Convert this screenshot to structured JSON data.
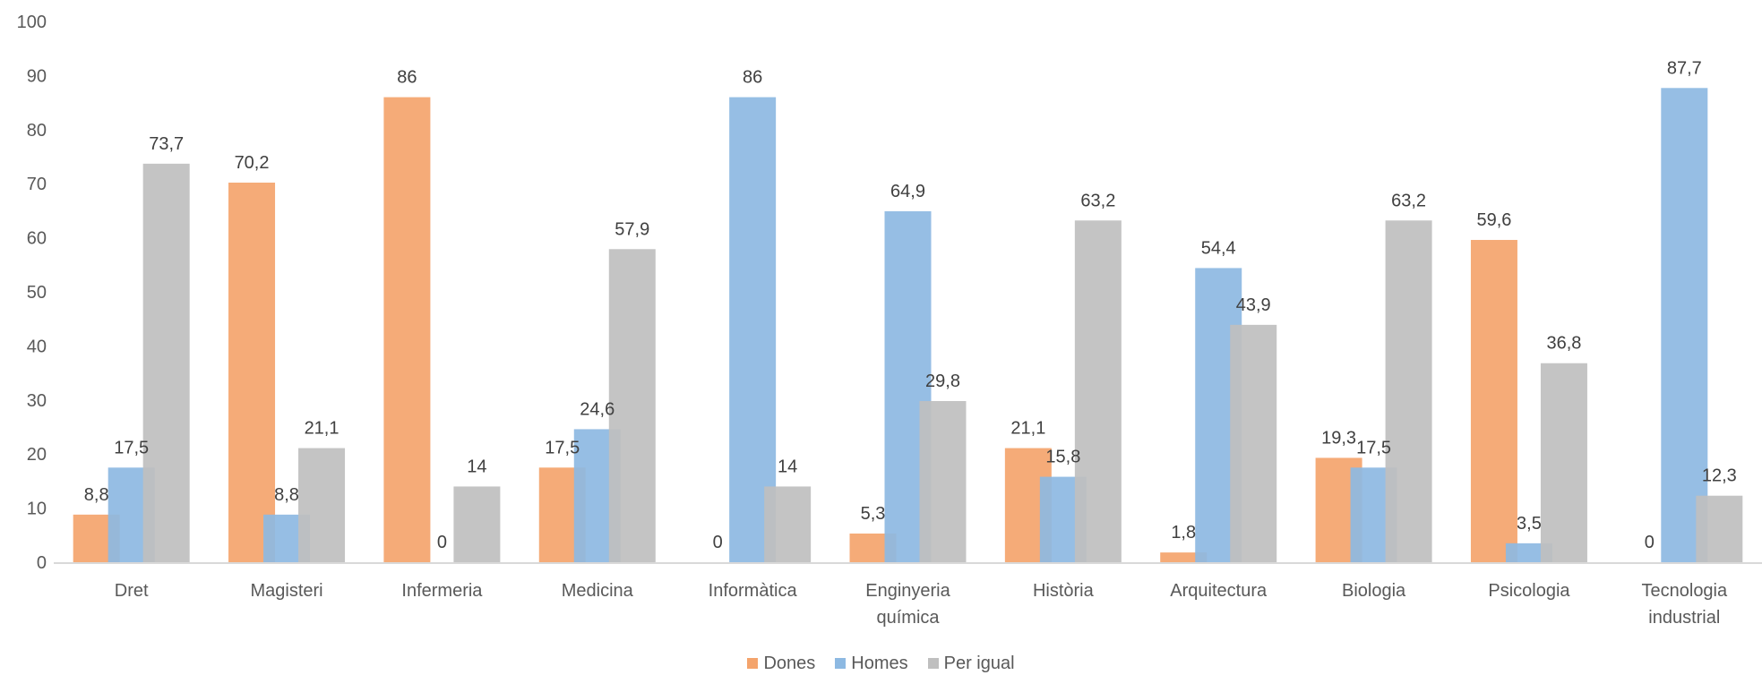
{
  "chart_data": {
    "type": "bar",
    "categories": [
      "Dret",
      "Magisteri",
      "Infermeria",
      "Medicina",
      "Informàtica",
      "Enginyeria química",
      "Història",
      "Arquitectura",
      "Biologia",
      "Psicologia",
      "Tecnologia industrial"
    ],
    "category_lines": [
      [
        "Dret"
      ],
      [
        "Magisteri"
      ],
      [
        "Infermeria"
      ],
      [
        "Medicina"
      ],
      [
        "Informàtica"
      ],
      [
        "Enginyeria",
        "química"
      ],
      [
        "Història"
      ],
      [
        "Arquitectura"
      ],
      [
        "Biologia"
      ],
      [
        "Psicologia"
      ],
      [
        "Tecnologia",
        "industrial"
      ]
    ],
    "series": [
      {
        "name": "Dones",
        "color": "#F4A46C",
        "values": [
          8.8,
          70.2,
          86,
          17.5,
          0,
          5.3,
          21.1,
          1.8,
          19.3,
          59.6,
          0
        ],
        "labels": [
          "8,8",
          "70,2",
          "86",
          "17,5",
          "0",
          "5,3",
          "21,1",
          "1,8",
          "19,3",
          "59,6",
          "0"
        ]
      },
      {
        "name": "Homes",
        "color": "#8DB9E2",
        "values": [
          17.5,
          8.8,
          0,
          24.6,
          86,
          64.9,
          15.8,
          54.4,
          17.5,
          3.5,
          87.7
        ],
        "labels": [
          "17,5",
          "8,8",
          "0",
          "24,6",
          "86",
          "64,9",
          "15,8",
          "54,4",
          "17,5",
          "3,5",
          "87,7"
        ]
      },
      {
        "name": "Per igual",
        "color": "#BFBFBF",
        "values": [
          73.7,
          21.1,
          14,
          57.9,
          14,
          29.8,
          63.2,
          43.9,
          63.2,
          36.8,
          12.3
        ],
        "labels": [
          "73,7",
          "21,1",
          "14",
          "57,9",
          "14",
          "29,8",
          "63,2",
          "43,9",
          "63,2",
          "36,8",
          "12,3"
        ]
      }
    ],
    "yticks": [
      "0",
      "10",
      "20",
      "30",
      "40",
      "50",
      "60",
      "70",
      "80",
      "90",
      "100"
    ],
    "ylim": [
      0,
      100
    ],
    "title": "",
    "xlabel": "",
    "ylabel": "",
    "grid": false,
    "legend_position": "bottom",
    "axis_color": "#D9D9D9"
  }
}
